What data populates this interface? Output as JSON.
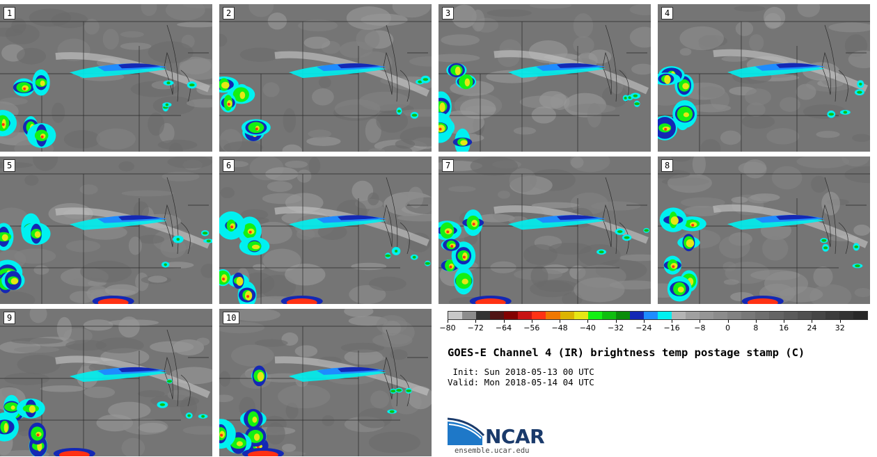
{
  "panels": [
    {
      "label": "1"
    },
    {
      "label": "2"
    },
    {
      "label": "3"
    },
    {
      "label": "4"
    },
    {
      "label": "5"
    },
    {
      "label": "6"
    },
    {
      "label": "7"
    },
    {
      "label": "8"
    },
    {
      "label": "9"
    },
    {
      "label": "10"
    }
  ],
  "colorbar": {
    "colors": [
      "#c8c8c8",
      "#8c8c8c",
      "#323232",
      "#501414",
      "#820000",
      "#c81414",
      "#ff3214",
      "#f07800",
      "#dcb400",
      "#e6e614",
      "#14f014",
      "#0fbe0f",
      "#0a8c0a",
      "#1428b4",
      "#1e8cff",
      "#00f0f0",
      "#b4b4b4",
      "#a0a0a0",
      "#969696",
      "#8c8c8c",
      "#828282",
      "#787878",
      "#6e6e6e",
      "#646464",
      "#5a5a5a",
      "#505050",
      "#464646",
      "#3c3c3c",
      "#323232",
      "#282828"
    ],
    "ticks": [
      "−80",
      "−72",
      "−64",
      "−56",
      "−48",
      "−40",
      "−32",
      "−24",
      "−16",
      "−8",
      "0",
      "8",
      "16",
      "24",
      "32"
    ]
  },
  "title": "GOES-E Channel 4 (IR) brightness temp postage stamp (C)",
  "init": " Init: Sun 2018-05-13 00 UTC",
  "valid": "Valid: Mon 2018-05-14 04 UTC",
  "logo": {
    "name": "NCAR",
    "url": "ensemble.ucar.edu",
    "color": "#1a3a6b",
    "swoosh_color": "#1e78c8"
  }
}
